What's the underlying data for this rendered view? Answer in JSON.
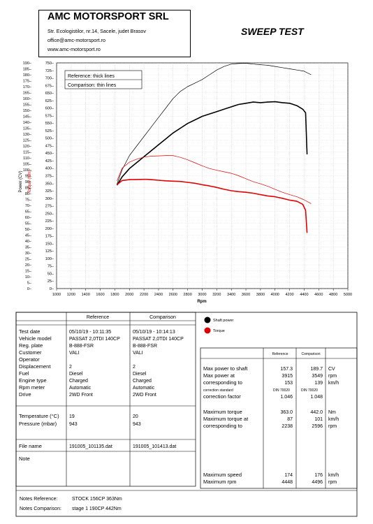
{
  "header": {
    "company": "AMC MOTORSPORT SRL",
    "address": "Str. Ecologistilor, nr.14, Sacele, judet Brasov",
    "email": "office@amc-motorsport.ro",
    "website": "www.amc-motorsport.ro",
    "doc_title": "SWEEP TEST"
  },
  "chart_data": {
    "type": "line",
    "xlabel": "Rpm",
    "ylabel_power": "Power (CV)",
    "ylabel_torque": "Torque (Nm)",
    "xlim": [
      1000,
      5000
    ],
    "x_ticks": [
      "1000",
      "1200",
      "1400",
      "1600",
      "1800",
      "2000",
      "2200",
      "2400",
      "2600",
      "2800",
      "3000",
      "3200",
      "3400",
      "3600",
      "3800",
      "4000",
      "4200",
      "4400",
      "4600",
      "4800",
      "5000"
    ],
    "power_ticks": [
      "0",
      "5",
      "10",
      "15",
      "20",
      "25",
      "30",
      "35",
      "40",
      "45",
      "50",
      "55",
      "60",
      "65",
      "70",
      "75",
      "80",
      "85",
      "90",
      "95",
      "100",
      "105",
      "110",
      "115",
      "120",
      "125",
      "130",
      "135",
      "140",
      "145",
      "150",
      "155",
      "160",
      "165",
      "170",
      "175",
      "180",
      "185",
      "190"
    ],
    "torque_ticks": [
      "0",
      "25",
      "50",
      "75",
      "100",
      "125",
      "150",
      "175",
      "200",
      "225",
      "250",
      "275",
      "300",
      "325",
      "350",
      "375",
      "400",
      "425",
      "450",
      "475",
      "500",
      "525",
      "550",
      "575",
      "600",
      "625",
      "650",
      "675",
      "700",
      "725",
      "750"
    ],
    "power_range": [
      0,
      190
    ],
    "torque_range": [
      0,
      750
    ],
    "grid": true,
    "legend_box": [
      "Reference: thick lines",
      "Comparison: thin lines"
    ],
    "colors": {
      "power": "#000000",
      "torque": "#e00000"
    },
    "series": [
      {
        "name": "Shaft power",
        "run": "Reference",
        "axis": "power",
        "x": [
          1830,
          1900,
          2000,
          2100,
          2200,
          2300,
          2400,
          2500,
          2600,
          2700,
          2800,
          2900,
          3000,
          3100,
          3200,
          3300,
          3400,
          3500,
          3600,
          3700,
          3800,
          3900,
          4000,
          4100,
          4200,
          4300,
          4380,
          4420,
          4440
        ],
        "y": [
          87,
          94,
          101,
          106,
          111,
          116,
          121,
          126,
          131,
          135,
          139,
          142,
          145,
          147,
          149,
          151,
          153,
          155,
          156,
          157,
          156.5,
          157,
          157.3,
          156.5,
          156,
          154,
          151,
          148,
          113
        ]
      },
      {
        "name": "Shaft power",
        "run": "Comparison",
        "axis": "power",
        "x": [
          1830,
          1900,
          2000,
          2100,
          2200,
          2300,
          2400,
          2500,
          2600,
          2700,
          2800,
          2900,
          3000,
          3100,
          3200,
          3300,
          3400,
          3500,
          3600,
          3700,
          3800,
          3900,
          4000,
          4100,
          4200,
          4300,
          4400,
          4496
        ],
        "y": [
          88,
          100,
          112,
          120,
          128,
          136,
          144,
          152,
          160,
          166,
          170,
          173,
          176,
          180,
          184,
          187,
          189,
          189.5,
          189.7,
          189,
          188.5,
          188,
          187,
          186,
          185,
          184,
          183,
          180
        ]
      },
      {
        "name": "Torque",
        "run": "Reference",
        "axis": "torque",
        "x": [
          1830,
          1900,
          2000,
          2100,
          2200,
          2238,
          2300,
          2400,
          2500,
          2600,
          2700,
          2800,
          2900,
          3000,
          3100,
          3200,
          3300,
          3400,
          3500,
          3600,
          3700,
          3800,
          3900,
          4000,
          4100,
          4200,
          4300,
          4380,
          4420,
          4440
        ],
        "y": [
          345,
          359,
          362,
          362.5,
          363,
          363,
          362,
          360,
          358,
          357,
          356,
          353,
          350,
          345,
          341,
          336,
          330,
          325,
          322,
          320,
          317,
          312,
          308,
          305,
          300,
          294,
          290,
          280,
          260,
          185
        ]
      },
      {
        "name": "Torque",
        "run": "Comparison",
        "axis": "torque",
        "x": [
          1830,
          1900,
          2000,
          2100,
          2200,
          2300,
          2400,
          2500,
          2596,
          2700,
          2800,
          2900,
          3000,
          3100,
          3200,
          3300,
          3400,
          3500,
          3600,
          3700,
          3800,
          3900,
          4000,
          4100,
          4200,
          4300,
          4400,
          4496
        ],
        "y": [
          358,
          400,
          420,
          430,
          437,
          440,
          441,
          442,
          442,
          436,
          428,
          418,
          408,
          399,
          393,
          388,
          383,
          375,
          365,
          355,
          348,
          340,
          330,
          320,
          312,
          305,
          295,
          282
        ]
      }
    ]
  },
  "legend": {
    "shaft_power": "Shaft power",
    "torque": "Torque"
  },
  "vehicle_table": {
    "col_reference": "Reference",
    "col_comparison": "Comparison",
    "labels": [
      "Test date",
      "Vehicle model",
      "Reg. plate",
      "Customer",
      "Operator",
      "Displacement",
      "Fuel",
      "Engine type",
      "Rpm meter",
      "Drive"
    ],
    "reference": [
      "05/10/19 - 10:11:35",
      "PASSAT 2,0TDI 140CP",
      "B-888-FSR",
      "VALI",
      "",
      "2",
      "Diesel",
      "Charged",
      "Automatic",
      "2WD Front"
    ],
    "comparison": [
      "05/10/19 - 10:14:13",
      "PASSAT 2,0TDI 140CP",
      "B-888-FSR",
      "VALI",
      "",
      "2",
      "Diesel",
      "Charged",
      "Automatic",
      "2WD Front"
    ],
    "temp_label": "Temperature (°C)",
    "pressure_label": "Pressure (mbar)",
    "temp_ref": "19",
    "temp_cmp": "20",
    "pressure_ref": "943",
    "pressure_cmp": "943",
    "file_label": "File name",
    "file_ref": "191005_101135.dat",
    "file_cmp": "191005_101413.dat",
    "note_label": "Note"
  },
  "results_table": {
    "col_reference": "Reference",
    "col_comparison": "Comparison",
    "max_power_label": "Max power to shaft",
    "max_power_ref": "157.3",
    "max_power_cmp": "189.7",
    "max_power_unit": "CV",
    "max_power_at_label": "Max power at",
    "max_power_at_ref": "3915",
    "max_power_at_cmp": "3549",
    "max_power_at_unit": "rpm",
    "corr_label_1": "corresponding to",
    "corr_speed_ref": "153",
    "corr_speed_cmp": "139",
    "corr_speed_unit": "km/h",
    "corr_std_label": "correction standard",
    "corr_std_ref": "DIN 70020",
    "corr_std_cmp": "DIN 70020",
    "corr_factor_label": "correction factor",
    "corr_factor_ref": "1.046",
    "corr_factor_cmp": "1.048",
    "max_torque_label": "Maximum torque",
    "max_torque_ref": "363.0",
    "max_torque_cmp": "442.0",
    "max_torque_unit": "Nm",
    "max_torque_at_label": "Maximum torque at",
    "max_torque_at_ref": "87",
    "max_torque_at_cmp": "101",
    "max_torque_at_unit": "km/h",
    "corr_label_2": "corresponding to",
    "corr_rpm_ref": "2238",
    "corr_rpm_cmp": "2596",
    "corr_rpm_unit": "rpm",
    "max_speed_label": "Maximum speed",
    "max_speed_ref": "174",
    "max_speed_cmp": "176",
    "max_speed_unit": "km/h",
    "max_rpm_label": "Maximum rpm",
    "max_rpm_ref": "4448",
    "max_rpm_cmp": "4496",
    "max_rpm_unit": "rpm"
  },
  "notes": {
    "ref_label": "Notes Reference:",
    "ref_value": "STOCK 156CP 363Nm",
    "cmp_label": "Notes Comparison:",
    "cmp_value": "stage 1 190CP 442Nm"
  }
}
